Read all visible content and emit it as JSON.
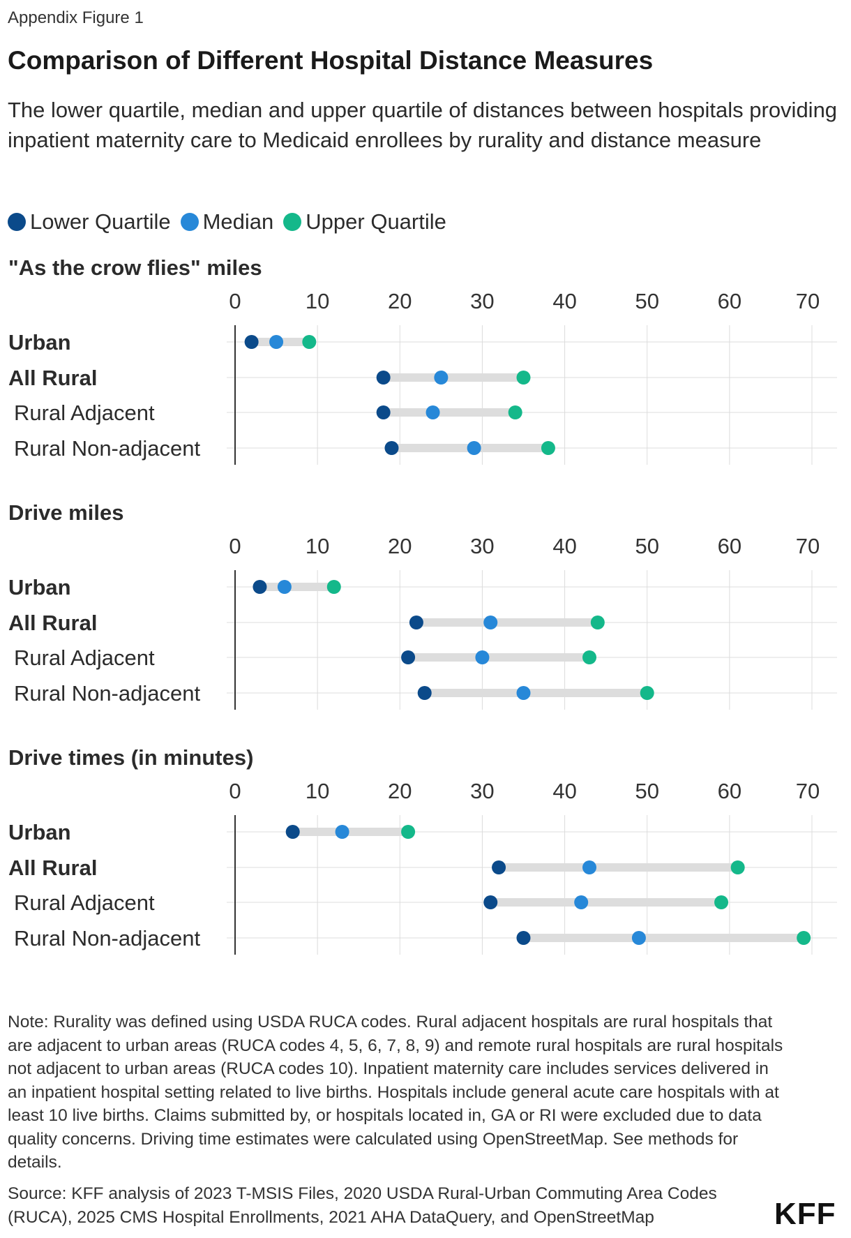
{
  "kicker": "Appendix Figure 1",
  "title": "Comparison of Different Hospital Distance Measures",
  "subtitle": "The lower quartile, median and upper quartile of distances between hospitals providing inpatient maternity care to Medicaid enrollees by rurality and distance measure",
  "legend": [
    {
      "label": "Lower Quartile",
      "color": "#0b4a8a"
    },
    {
      "label": "Median",
      "color": "#2788d8"
    },
    {
      "label": "Upper Quartile",
      "color": "#14b88a"
    }
  ],
  "note": "Note: Rurality was defined using USDA RUCA codes. Rural adjacent hospitals are rural hospitals that are adjacent to urban areas (RUCA codes 4, 5, 6, 7, 8, 9) and remote rural hospitals are rural hospitals not adjacent to urban areas (RUCA codes 10). Inpatient maternity care includes services delivered in an inpatient hospital setting related to live births. Hospitals include general acute care hospitals with at least 10 live births. Claims submitted by, or hospitals located in, GA or RI were excluded due to data quality concerns. Driving time estimates were calculated using OpenStreetMap. See methods for details.",
  "source": "Source: KFF analysis of 2023 T-MSIS Files, 2020 USDA Rural-Urban Commuting Area Codes (RUCA), 2025 CMS Hospital Enrollments, 2021 AHA DataQuery, and OpenStreetMap",
  "logo": "KFF",
  "chart_data": [
    {
      "type": "dot-range",
      "title": "\"As the crow flies\" miles",
      "xlim": [
        0,
        70
      ],
      "ticks": [
        0,
        10,
        20,
        30,
        40,
        50,
        60,
        70
      ],
      "grid": true,
      "categories": [
        "Urban",
        "All Rural",
        "Rural Adjacent",
        "Rural Non-adjacent"
      ],
      "bold_categories": [
        "Urban",
        "All Rural"
      ],
      "series": [
        {
          "name": "Lower Quartile",
          "values": [
            2,
            18,
            18,
            19
          ]
        },
        {
          "name": "Median",
          "values": [
            5,
            25,
            24,
            29
          ]
        },
        {
          "name": "Upper Quartile",
          "values": [
            9,
            35,
            34,
            38
          ]
        }
      ]
    },
    {
      "type": "dot-range",
      "title": "Drive miles",
      "xlim": [
        0,
        70
      ],
      "ticks": [
        0,
        10,
        20,
        30,
        40,
        50,
        60,
        70
      ],
      "grid": true,
      "categories": [
        "Urban",
        "All Rural",
        "Rural Adjacent",
        "Rural Non-adjacent"
      ],
      "bold_categories": [
        "Urban",
        "All Rural"
      ],
      "series": [
        {
          "name": "Lower Quartile",
          "values": [
            3,
            22,
            21,
            23
          ]
        },
        {
          "name": "Median",
          "values": [
            6,
            31,
            30,
            35
          ]
        },
        {
          "name": "Upper Quartile",
          "values": [
            12,
            44,
            43,
            50
          ]
        }
      ]
    },
    {
      "type": "dot-range",
      "title": "Drive times (in minutes)",
      "xlim": [
        0,
        70
      ],
      "ticks": [
        0,
        10,
        20,
        30,
        40,
        50,
        60,
        70
      ],
      "grid": true,
      "categories": [
        "Urban",
        "All Rural",
        "Rural Adjacent",
        "Rural Non-adjacent"
      ],
      "bold_categories": [
        "Urban",
        "All Rural"
      ],
      "series": [
        {
          "name": "Lower Quartile",
          "values": [
            7,
            32,
            31,
            35
          ]
        },
        {
          "name": "Median",
          "values": [
            13,
            43,
            42,
            49
          ]
        },
        {
          "name": "Upper Quartile",
          "values": [
            21,
            61,
            59,
            69
          ]
        }
      ]
    }
  ]
}
